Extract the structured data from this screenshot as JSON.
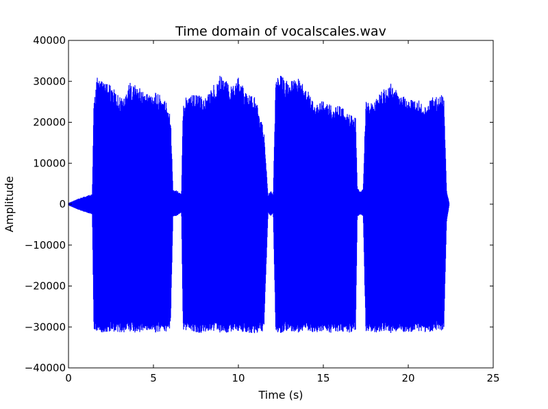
{
  "chart_data": {
    "type": "line",
    "title": "Time domain of vocalscales.wav",
    "xlabel": "Time (s)",
    "ylabel": "Amplitude",
    "xlim": [
      0,
      25
    ],
    "ylim": [
      -40000,
      40000
    ],
    "x_ticks": [
      0,
      5,
      10,
      15,
      20,
      25
    ],
    "y_ticks": [
      -40000,
      -30000,
      -20000,
      -10000,
      0,
      10000,
      20000,
      30000,
      40000
    ],
    "x_tick_labels": [
      "0",
      "5",
      "10",
      "15",
      "20",
      "25"
    ],
    "y_tick_labels": [
      "−40000",
      "−30000",
      "−20000",
      "−10000",
      "0",
      "10000",
      "20000",
      "30000",
      "40000"
    ],
    "grid": false,
    "line_color": "#0000ff",
    "series": [
      {
        "x": [
          0.0,
          0.5,
          1.0,
          1.4,
          1.5,
          1.7,
          2.0,
          2.5,
          3.0,
          3.3,
          3.5,
          4.0,
          4.5,
          5.0,
          5.5,
          5.8,
          6.0,
          6.15,
          6.3,
          6.5,
          6.65,
          6.75,
          7.0,
          7.5,
          8.0,
          8.5,
          9.0,
          9.5,
          10.0,
          10.5,
          11.0,
          11.5,
          11.75,
          11.9,
          12.05,
          12.2,
          12.5,
          13.0,
          13.5,
          14.0,
          14.5,
          15.0,
          15.5,
          16.0,
          16.5,
          16.9,
          17.0,
          17.2,
          17.35,
          17.5,
          18.0,
          18.5,
          19.0,
          19.5,
          20.0,
          20.5,
          21.0,
          21.5,
          22.1,
          22.25,
          22.4
        ],
        "upper": [
          300,
          1200,
          2000,
          2500,
          26000,
          31500,
          30000,
          29000,
          26500,
          26000,
          30000,
          29000,
          27500,
          27500,
          26500,
          25000,
          22500,
          3500,
          3500,
          3000,
          2500,
          25000,
          27500,
          27000,
          26000,
          29000,
          32000,
          29000,
          31000,
          27000,
          26000,
          18000,
          2000,
          3500,
          2000,
          31000,
          31500,
          30000,
          31000,
          29000,
          24000,
          25500,
          24000,
          24000,
          22000,
          21500,
          4000,
          3000,
          4000,
          25000,
          25000,
          28000,
          29500,
          27000,
          25500,
          26000,
          24000,
          26500,
          27000,
          3500,
          500
        ],
        "lower": [
          -300,
          -1200,
          -2000,
          -2500,
          -31500,
          -31000,
          -31500,
          -31000,
          -31500,
          -31500,
          -31000,
          -31500,
          -31000,
          -31500,
          -31000,
          -31500,
          -31000,
          -3000,
          -3000,
          -2500,
          -2000,
          -31500,
          -31000,
          -31500,
          -31500,
          -31000,
          -31500,
          -31500,
          -31000,
          -31500,
          -31500,
          -31000,
          -2000,
          -3000,
          -2000,
          -31500,
          -31500,
          -31000,
          -31500,
          -31000,
          -31500,
          -31000,
          -31500,
          -31000,
          -31500,
          -31000,
          -3000,
          -2500,
          -3000,
          -31000,
          -31500,
          -31000,
          -31500,
          -31000,
          -31500,
          -31000,
          -31500,
          -31000,
          -31000,
          -4500,
          -500
        ]
      }
    ]
  }
}
